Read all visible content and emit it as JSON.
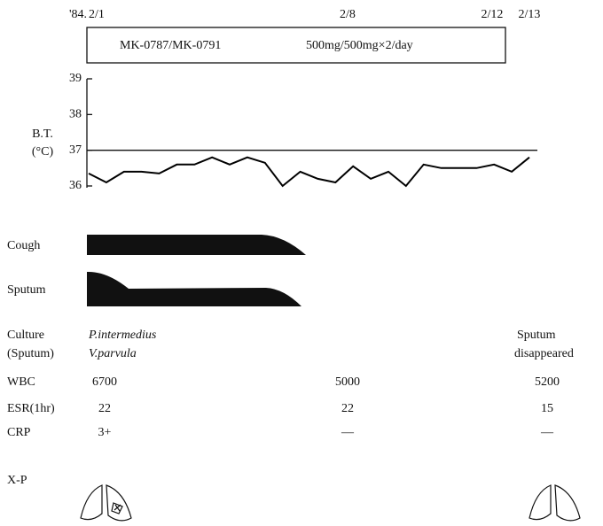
{
  "year": "'84.",
  "dates": [
    "2/1",
    "2/8",
    "2/12",
    "2/13"
  ],
  "treatment": {
    "drug": "MK-0787/MK-0791",
    "dose": "500mg/500mg×2/day"
  },
  "chart_data": {
    "type": "line",
    "y_label": [
      "B.T.",
      "(°C)"
    ],
    "values": [
      36.35,
      36.1,
      36.4,
      36.4,
      36.35,
      36.6,
      36.6,
      36.8,
      36.6,
      36.8,
      36.65,
      36.0,
      36.4,
      36.2,
      36.1,
      36.55,
      36.2,
      36.4,
      36.0,
      36.6,
      36.5,
      36.5,
      36.5,
      36.6,
      36.4,
      36.8
    ],
    "color": "#000000",
    "ylim": [
      36,
      39
    ],
    "yticks": [
      36,
      37,
      38,
      39
    ],
    "reference_line": 37
  },
  "symptoms": [
    "Cough",
    "Sputum"
  ],
  "culture": {
    "label": "Culture",
    "sublabel": "(Sputum)",
    "organisms": [
      "P.intermedius",
      "V.parvula"
    ],
    "end": [
      "Sputum",
      "disappeared"
    ]
  },
  "table": {
    "rows": [
      [
        "WBC",
        6700,
        5000,
        5200
      ],
      [
        "ESR(1hr)",
        22,
        22,
        15
      ],
      [
        "CRP",
        "3+",
        "—",
        "—"
      ]
    ]
  },
  "xp": "X-P"
}
